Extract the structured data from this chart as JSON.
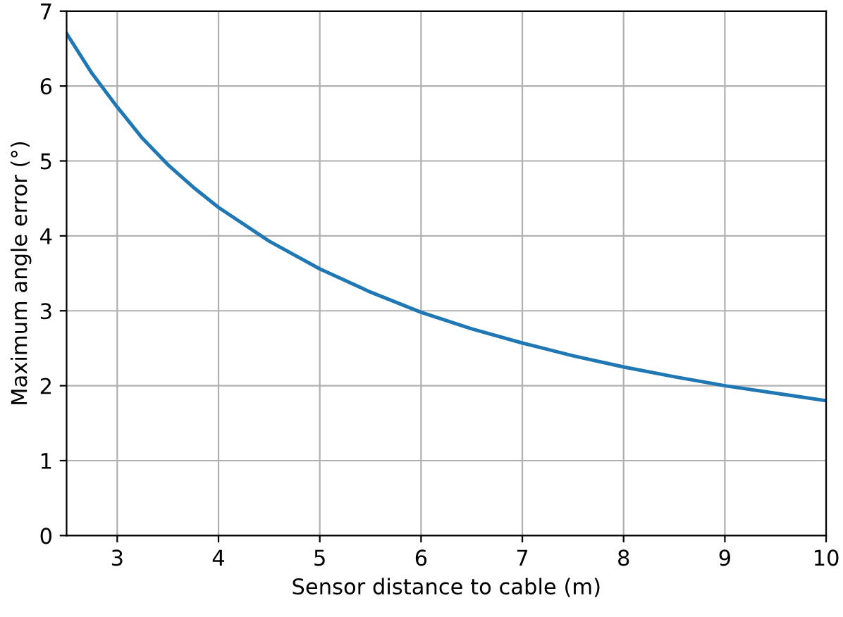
{
  "chart_data": {
    "type": "line",
    "xlabel": "Sensor distance to cable (m)",
    "ylabel": "Maximum angle error (°)",
    "x": [
      2.5,
      2.75,
      3,
      3.25,
      3.5,
      3.75,
      4,
      4.5,
      5,
      5.5,
      6,
      6.5,
      7,
      7.5,
      8,
      8.5,
      9,
      9.5,
      10
    ],
    "series": [
      {
        "color": "#1f77b4",
        "values": [
          6.7,
          6.17,
          5.72,
          5.3,
          4.95,
          4.65,
          4.38,
          3.93,
          3.56,
          3.25,
          2.98,
          2.76,
          2.57,
          2.4,
          2.25,
          2.12,
          2.0,
          1.9,
          1.8
        ]
      }
    ],
    "xlim": [
      2.5,
      10
    ],
    "xticks": [
      3,
      4,
      5,
      6,
      7,
      8,
      9,
      10
    ],
    "ylim": [
      0,
      7
    ],
    "yticks": [
      0,
      1,
      2,
      3,
      4,
      5,
      6,
      7
    ],
    "grid": true,
    "marker": "none",
    "line_style": "solid"
  }
}
